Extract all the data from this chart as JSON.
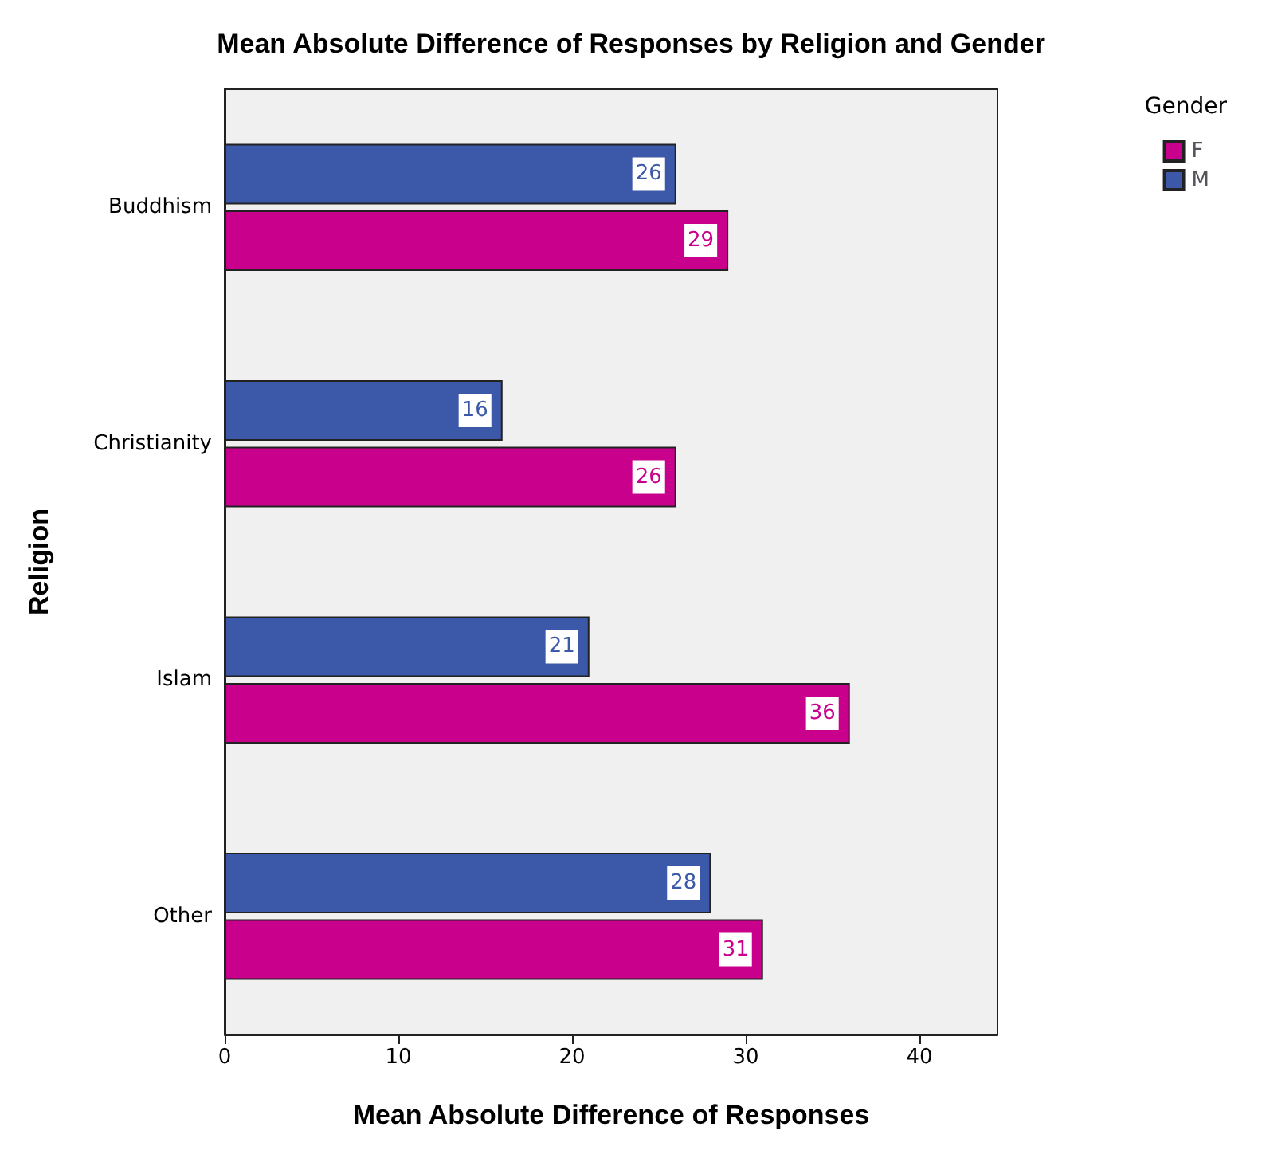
{
  "chart_data": {
    "type": "bar",
    "orientation": "horizontal",
    "title": "Mean Absolute Difference of Responses by Religion and Gender",
    "xlabel": "Mean Absolute Difference of Responses",
    "ylabel": "Religion",
    "legend_title": "Gender",
    "categories": [
      "Buddhism",
      "Christianity",
      "Islam",
      "Other"
    ],
    "series": [
      {
        "name": "F",
        "color": "#c8008c",
        "values": [
          29,
          26,
          36,
          31
        ]
      },
      {
        "name": "M",
        "color": "#3c58a8",
        "values": [
          26,
          16,
          21,
          28
        ]
      }
    ],
    "xlim": [
      0,
      44.5
    ],
    "xticks": [
      0,
      10,
      20,
      30,
      40
    ],
    "data_labels": true,
    "grid": false,
    "legend": "right"
  }
}
